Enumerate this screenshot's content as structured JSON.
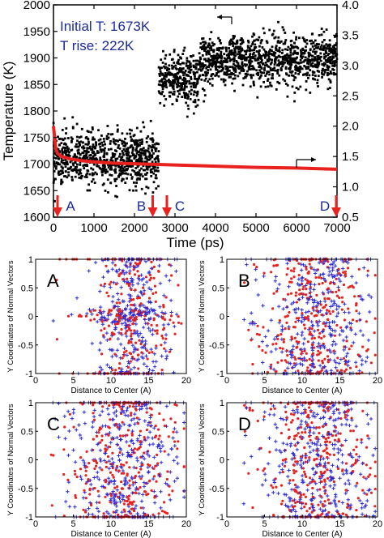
{
  "colors": {
    "black": "#000000",
    "red": "#e8221e",
    "blue": "#2b2bd6",
    "navy": "#1a2a9c",
    "axis": "#000000"
  },
  "top_chart": {
    "chart_data": {
      "type": "scatter",
      "xlabel": "Time (ps)",
      "ylabel": "Temperature (K)",
      "xlim": [
        0,
        7000
      ],
      "ylim": [
        1600,
        2000
      ],
      "y2lim": [
        0.5,
        4.0
      ],
      "xticks": [
        0,
        1000,
        2000,
        3000,
        4000,
        5000,
        6000,
        7000
      ],
      "yticks": [
        1600,
        1650,
        1700,
        1750,
        1800,
        1850,
        1900,
        1950,
        2000
      ],
      "y2ticks": [
        0.5,
        1.0,
        1.5,
        2.0,
        2.5,
        3.0,
        3.5,
        4.0
      ],
      "annotations": [
        "Initial T: 1673K",
        "T rise: 222K"
      ],
      "markers": [
        {
          "label": "A",
          "x": 100
        },
        {
          "label": "B",
          "x": 2450
        },
        {
          "label": "C",
          "x": 2800
        },
        {
          "label": "D",
          "x": 6980
        }
      ],
      "series": [
        {
          "type": "scatter",
          "color": "#000000",
          "axis": "left",
          "segments": [
            {
              "x": [
                0,
                2600
              ],
              "mean": 1710,
              "spread": 45
            },
            {
              "x": [
                2600,
                3600
              ],
              "mean": 1860,
              "spread": 45
            },
            {
              "x": [
                3600,
                7000
              ],
              "mean": 1895,
              "spread": 42
            }
          ]
        },
        {
          "type": "line",
          "color": "#e8221e",
          "axis": "right",
          "x": [
            0,
            30,
            60,
            100,
            200,
            400,
            700,
            1000,
            1500,
            2000,
            2500,
            3000,
            4000,
            5000,
            6000,
            7000
          ],
          "y": [
            2.0,
            1.8,
            1.62,
            1.55,
            1.5,
            1.46,
            1.43,
            1.41,
            1.39,
            1.38,
            1.37,
            1.36,
            1.34,
            1.32,
            1.31,
            1.29
          ]
        }
      ]
    }
  },
  "small_charts": {
    "xlabel": "Distance to Center (A)",
    "ylabel": "Y Coordinates of Normal Vectors",
    "xlim": [
      0,
      20
    ],
    "ylim": [
      -1,
      1
    ],
    "xticks": [
      0,
      5,
      10,
      15,
      20
    ],
    "yticks": [
      -1,
      -0.5,
      0,
      0.5,
      1
    ],
    "panels": [
      {
        "label": "A",
        "center": 12.5,
        "spread": 2.5,
        "cluster_y0": true
      },
      {
        "label": "B",
        "center": 12.0,
        "spread": 3.0,
        "cluster_y0": false
      },
      {
        "label": "C",
        "center": 12.0,
        "spread": 3.2,
        "cluster_y0": false
      },
      {
        "label": "D",
        "center": 12.0,
        "spread": 3.2,
        "cluster_y0": false
      }
    ]
  }
}
